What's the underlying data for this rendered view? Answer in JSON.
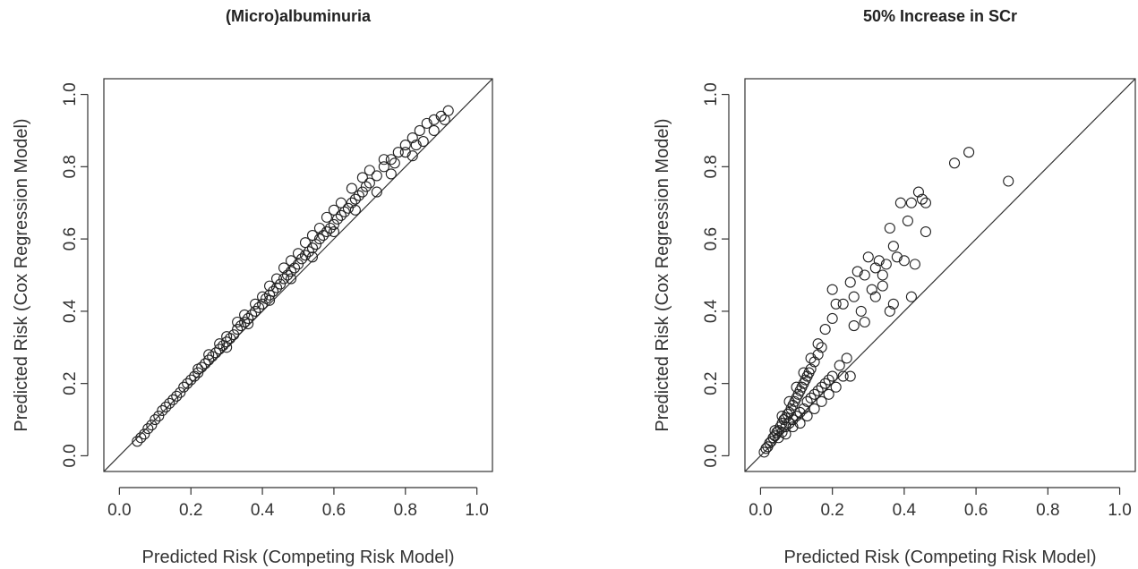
{
  "chart_data": [
    {
      "type": "scatter",
      "title": "(Micro)albuminuria",
      "xlabel": "Predicted Risk (Competing Risk Model)",
      "ylabel": "Predicted Risk (Cox Regression Model)",
      "xlim": [
        0,
        1
      ],
      "ylim": [
        0,
        1
      ],
      "xticks": [
        "0.0",
        "0.2",
        "0.4",
        "0.6",
        "0.8",
        "1.0"
      ],
      "yticks": [
        "0.0",
        "0.2",
        "0.4",
        "0.6",
        "0.8",
        "1.0"
      ],
      "reference_line": "y = x",
      "series": [
        {
          "points": [
            [
              0.05,
              0.04
            ],
            [
              0.06,
              0.05
            ],
            [
              0.07,
              0.06
            ],
            [
              0.08,
              0.075
            ],
            [
              0.09,
              0.085
            ],
            [
              0.1,
              0.1
            ],
            [
              0.11,
              0.11
            ],
            [
              0.12,
              0.125
            ],
            [
              0.13,
              0.135
            ],
            [
              0.14,
              0.145
            ],
            [
              0.15,
              0.155
            ],
            [
              0.16,
              0.165
            ],
            [
              0.17,
              0.175
            ],
            [
              0.18,
              0.19
            ],
            [
              0.19,
              0.2
            ],
            [
              0.2,
              0.21
            ],
            [
              0.21,
              0.22
            ],
            [
              0.22,
              0.23
            ],
            [
              0.23,
              0.245
            ],
            [
              0.24,
              0.255
            ],
            [
              0.25,
              0.265
            ],
            [
              0.26,
              0.275
            ],
            [
              0.27,
              0.285
            ],
            [
              0.28,
              0.295
            ],
            [
              0.29,
              0.305
            ],
            [
              0.3,
              0.315
            ],
            [
              0.31,
              0.325
            ],
            [
              0.32,
              0.335
            ],
            [
              0.33,
              0.35
            ],
            [
              0.34,
              0.36
            ],
            [
              0.35,
              0.37
            ],
            [
              0.36,
              0.38
            ],
            [
              0.37,
              0.39
            ],
            [
              0.38,
              0.4
            ],
            [
              0.39,
              0.41
            ],
            [
              0.4,
              0.42
            ],
            [
              0.41,
              0.435
            ],
            [
              0.42,
              0.445
            ],
            [
              0.43,
              0.455
            ],
            [
              0.44,
              0.465
            ],
            [
              0.45,
              0.475
            ],
            [
              0.46,
              0.49
            ],
            [
              0.47,
              0.5
            ],
            [
              0.48,
              0.51
            ],
            [
              0.49,
              0.52
            ],
            [
              0.5,
              0.53
            ],
            [
              0.51,
              0.545
            ],
            [
              0.52,
              0.555
            ],
            [
              0.53,
              0.565
            ],
            [
              0.54,
              0.575
            ],
            [
              0.55,
              0.585
            ],
            [
              0.56,
              0.6
            ],
            [
              0.57,
              0.61
            ],
            [
              0.58,
              0.62
            ],
            [
              0.59,
              0.63
            ],
            [
              0.6,
              0.64
            ],
            [
              0.61,
              0.655
            ],
            [
              0.62,
              0.665
            ],
            [
              0.63,
              0.675
            ],
            [
              0.64,
              0.685
            ],
            [
              0.65,
              0.7
            ],
            [
              0.66,
              0.71
            ],
            [
              0.67,
              0.72
            ],
            [
              0.68,
              0.73
            ],
            [
              0.69,
              0.745
            ],
            [
              0.7,
              0.755
            ],
            [
              0.72,
              0.775
            ],
            [
              0.74,
              0.8
            ],
            [
              0.76,
              0.82
            ],
            [
              0.78,
              0.84
            ],
            [
              0.8,
              0.86
            ],
            [
              0.82,
              0.88
            ],
            [
              0.84,
              0.9
            ],
            [
              0.86,
              0.92
            ],
            [
              0.88,
              0.93
            ],
            [
              0.9,
              0.94
            ],
            [
              0.92,
              0.955
            ],
            [
              0.22,
              0.24
            ],
            [
              0.25,
              0.28
            ],
            [
              0.28,
              0.31
            ],
            [
              0.3,
              0.33
            ],
            [
              0.33,
              0.37
            ],
            [
              0.35,
              0.39
            ],
            [
              0.38,
              0.42
            ],
            [
              0.4,
              0.44
            ],
            [
              0.42,
              0.47
            ],
            [
              0.44,
              0.49
            ],
            [
              0.46,
              0.52
            ],
            [
              0.48,
              0.54
            ],
            [
              0.5,
              0.56
            ],
            [
              0.52,
              0.59
            ],
            [
              0.54,
              0.61
            ],
            [
              0.56,
              0.63
            ],
            [
              0.58,
              0.66
            ],
            [
              0.6,
              0.68
            ],
            [
              0.62,
              0.7
            ],
            [
              0.65,
              0.74
            ],
            [
              0.68,
              0.77
            ],
            [
              0.7,
              0.79
            ],
            [
              0.74,
              0.82
            ],
            [
              0.77,
              0.81
            ],
            [
              0.8,
              0.84
            ],
            [
              0.83,
              0.86
            ],
            [
              0.85,
              0.87
            ],
            [
              0.88,
              0.9
            ],
            [
              0.91,
              0.93
            ],
            [
              0.3,
              0.3
            ],
            [
              0.36,
              0.365
            ],
            [
              0.42,
              0.43
            ],
            [
              0.48,
              0.49
            ],
            [
              0.54,
              0.55
            ],
            [
              0.6,
              0.62
            ],
            [
              0.66,
              0.68
            ],
            [
              0.72,
              0.73
            ],
            [
              0.76,
              0.78
            ],
            [
              0.82,
              0.83
            ]
          ]
        }
      ]
    },
    {
      "type": "scatter",
      "title": "50% Increase in SCr",
      "xlabel": "Predicted Risk (Competing Risk Model)",
      "ylabel": "Predicted Risk (Cox Regression Model)",
      "xlim": [
        0,
        1
      ],
      "ylim": [
        0,
        1
      ],
      "xticks": [
        "0.0",
        "0.2",
        "0.4",
        "0.6",
        "0.8",
        "1.0"
      ],
      "yticks": [
        "0.0",
        "0.2",
        "0.4",
        "0.6",
        "0.8",
        "1.0"
      ],
      "reference_line": "y = x",
      "series": [
        {
          "points": [
            [
              0.01,
              0.01
            ],
            [
              0.015,
              0.02
            ],
            [
              0.02,
              0.025
            ],
            [
              0.025,
              0.035
            ],
            [
              0.03,
              0.04
            ],
            [
              0.035,
              0.05
            ],
            [
              0.04,
              0.055
            ],
            [
              0.045,
              0.065
            ],
            [
              0.05,
              0.07
            ],
            [
              0.055,
              0.08
            ],
            [
              0.06,
              0.09
            ],
            [
              0.065,
              0.1
            ],
            [
              0.07,
              0.105
            ],
            [
              0.075,
              0.115
            ],
            [
              0.08,
              0.12
            ],
            [
              0.085,
              0.13
            ],
            [
              0.09,
              0.14
            ],
            [
              0.095,
              0.15
            ],
            [
              0.1,
              0.16
            ],
            [
              0.105,
              0.17
            ],
            [
              0.11,
              0.18
            ],
            [
              0.115,
              0.19
            ],
            [
              0.12,
              0.2
            ],
            [
              0.125,
              0.21
            ],
            [
              0.13,
              0.22
            ],
            [
              0.135,
              0.23
            ],
            [
              0.14,
              0.24
            ],
            [
              0.15,
              0.26
            ],
            [
              0.16,
              0.28
            ],
            [
              0.17,
              0.3
            ],
            [
              0.05,
              0.05
            ],
            [
              0.06,
              0.065
            ],
            [
              0.07,
              0.08
            ],
            [
              0.08,
              0.09
            ],
            [
              0.09,
              0.1
            ],
            [
              0.1,
              0.11
            ],
            [
              0.11,
              0.12
            ],
            [
              0.12,
              0.13
            ],
            [
              0.13,
              0.15
            ],
            [
              0.14,
              0.16
            ],
            [
              0.15,
              0.17
            ],
            [
              0.16,
              0.18
            ],
            [
              0.17,
              0.19
            ],
            [
              0.18,
              0.2
            ],
            [
              0.19,
              0.21
            ],
            [
              0.2,
              0.22
            ],
            [
              0.22,
              0.25
            ],
            [
              0.24,
              0.27
            ],
            [
              0.04,
              0.07
            ],
            [
              0.06,
              0.11
            ],
            [
              0.08,
              0.15
            ],
            [
              0.1,
              0.19
            ],
            [
              0.12,
              0.23
            ],
            [
              0.14,
              0.27
            ],
            [
              0.16,
              0.31
            ],
            [
              0.18,
              0.35
            ],
            [
              0.2,
              0.38
            ],
            [
              0.21,
              0.42
            ],
            [
              0.07,
              0.06
            ],
            [
              0.09,
              0.08
            ],
            [
              0.11,
              0.09
            ],
            [
              0.13,
              0.11
            ],
            [
              0.15,
              0.13
            ],
            [
              0.17,
              0.15
            ],
            [
              0.19,
              0.17
            ],
            [
              0.21,
              0.19
            ],
            [
              0.23,
              0.22
            ],
            [
              0.2,
              0.46
            ],
            [
              0.23,
              0.42
            ],
            [
              0.25,
              0.48
            ],
            [
              0.26,
              0.44
            ],
            [
              0.27,
              0.51
            ],
            [
              0.28,
              0.4
            ],
            [
              0.29,
              0.5
            ],
            [
              0.3,
              0.55
            ],
            [
              0.31,
              0.46
            ],
            [
              0.32,
              0.52
            ],
            [
              0.33,
              0.54
            ],
            [
              0.34,
              0.47
            ],
            [
              0.35,
              0.53
            ],
            [
              0.36,
              0.63
            ],
            [
              0.37,
              0.58
            ],
            [
              0.38,
              0.55
            ],
            [
              0.39,
              0.7
            ],
            [
              0.4,
              0.54
            ],
            [
              0.41,
              0.65
            ],
            [
              0.42,
              0.7
            ],
            [
              0.43,
              0.53
            ],
            [
              0.44,
              0.73
            ],
            [
              0.45,
              0.71
            ],
            [
              0.46,
              0.7
            ],
            [
              0.46,
              0.62
            ],
            [
              0.37,
              0.42
            ],
            [
              0.36,
              0.4
            ],
            [
              0.29,
              0.37
            ],
            [
              0.26,
              0.36
            ],
            [
              0.25,
              0.22
            ],
            [
              0.42,
              0.44
            ],
            [
              0.32,
              0.44
            ],
            [
              0.34,
              0.5
            ],
            [
              0.54,
              0.81
            ],
            [
              0.58,
              0.84
            ],
            [
              0.69,
              0.76
            ]
          ]
        }
      ]
    }
  ]
}
